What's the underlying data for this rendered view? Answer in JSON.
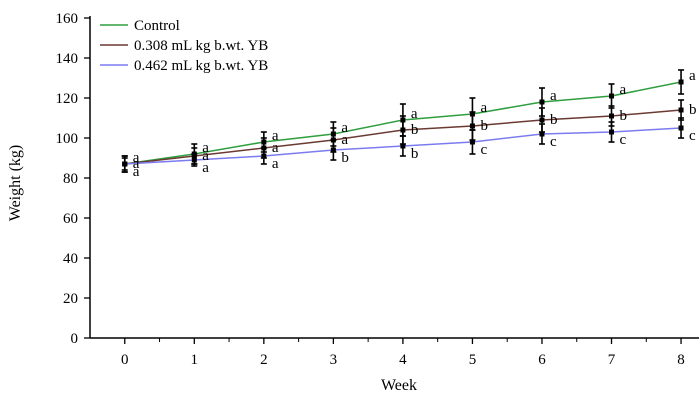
{
  "chart_data": {
    "type": "line",
    "xlabel": "Week",
    "ylabel": "Weight (kg)",
    "x": [
      0,
      1,
      2,
      3,
      4,
      5,
      6,
      7,
      8
    ],
    "xlim": [
      -0.5,
      8.1
    ],
    "ylim": [
      0,
      160
    ],
    "yticks": [
      0,
      20,
      40,
      60,
      80,
      100,
      120,
      140,
      160
    ],
    "grid": false,
    "legend_position": "top-left",
    "series": [
      {
        "name": "Control",
        "color": "#2e9e3e",
        "values": [
          87,
          92,
          98,
          102,
          109,
          112,
          118,
          121,
          128
        ],
        "errors": [
          4,
          5,
          5,
          6,
          8,
          8,
          7,
          6,
          6
        ],
        "letters": [
          "a",
          "a",
          "a",
          "a",
          "a",
          "a",
          "a",
          "a",
          "a"
        ]
      },
      {
        "name": "0.308 mL kg b.wt. YB",
        "color": "#6b3a32",
        "values": [
          87,
          91,
          95,
          99,
          104,
          106,
          109,
          111,
          114
        ],
        "errors": [
          3,
          4,
          5,
          6,
          7,
          7,
          6,
          5,
          5
        ],
        "letters": [
          "a",
          "a",
          "a",
          "a",
          "b",
          "b",
          "b",
          "b",
          "b"
        ]
      },
      {
        "name": "0.462 mL kg b.wt. YB",
        "color": "#7b7bf0",
        "values": [
          87,
          89,
          91,
          94,
          96,
          98,
          102,
          103,
          105
        ],
        "errors": [
          4,
          3,
          4,
          5,
          5,
          6,
          5,
          5,
          5
        ],
        "letters": [
          "a",
          "a",
          "a",
          "b",
          "b",
          "c",
          "c",
          "c",
          "c"
        ]
      }
    ]
  }
}
